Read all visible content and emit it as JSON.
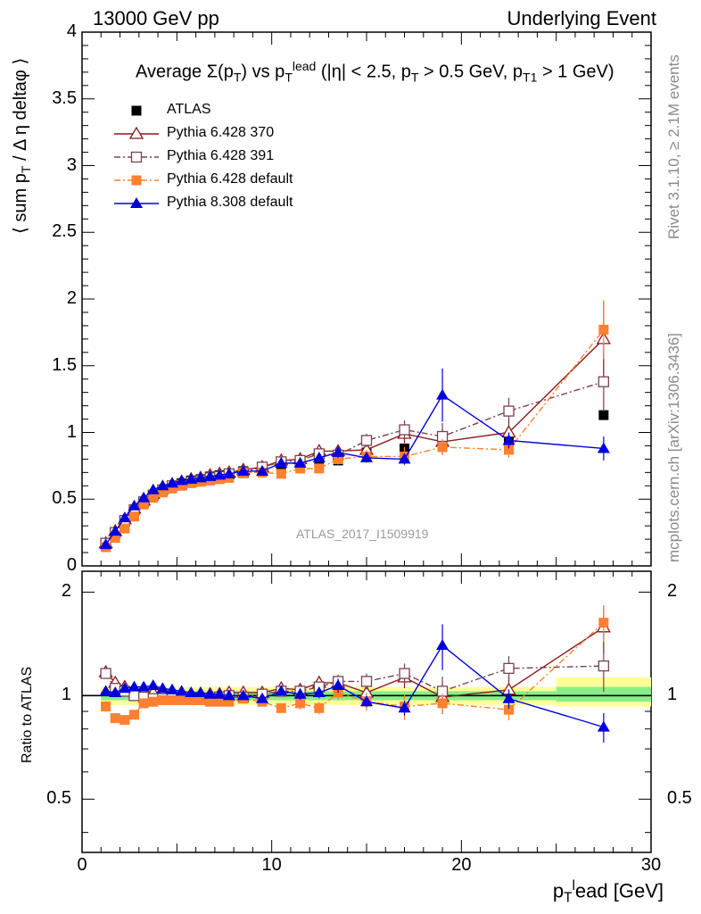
{
  "header": {
    "left": "13000 GeV pp",
    "right": "Underlying Event"
  },
  "side_labels": {
    "rivet": "Rivet 3.1.10, ≥ 2.1M events",
    "mcplots": "mcplots.cern.ch [arXiv:1306.3436]"
  },
  "watermark": "ATLAS_2017_I1509919",
  "chart_data": [
    {
      "type": "scatter",
      "title": "Average Σ(pT) vs pT^lead (|η| < 2.5, pT > 0.5 GeV, pT1 > 1 GeV)",
      "ylabel": "⟨ sum pT / Δ η deltaφ ⟩",
      "xlabel": "pT^lead [GeV]",
      "xlim": [
        0,
        30
      ],
      "ylim": [
        0,
        4
      ],
      "yticks": [
        "0",
        "0.5",
        "1",
        "1.5",
        "2",
        "2.5",
        "3",
        "3.5",
        "4"
      ],
      "xticks": [
        "0",
        "10",
        "20",
        "30"
      ],
      "legend_position": "top-left",
      "x": [
        1.25,
        1.75,
        2.25,
        2.75,
        3.25,
        3.75,
        4.25,
        4.75,
        5.25,
        5.75,
        6.25,
        6.75,
        7.25,
        7.75,
        8.5,
        9.5,
        10.5,
        11.5,
        12.5,
        13.5,
        15.0,
        17.0,
        19.0,
        22.5,
        27.5
      ],
      "series": [
        {
          "name": "ATLAS",
          "color": "#000000",
          "marker": "square-filled",
          "values": [
            0.15,
            0.24,
            0.33,
            0.42,
            0.48,
            0.53,
            0.57,
            0.6,
            0.62,
            0.64,
            0.65,
            0.67,
            0.68,
            0.69,
            0.71,
            0.73,
            0.75,
            0.77,
            0.79,
            0.79,
            0.85,
            0.88,
            0.94,
            0.96,
            1.13
          ]
        },
        {
          "name": "Pythia 6.428 370",
          "color": "#8b1a1a",
          "marker": "triangle-open",
          "line": "solid",
          "values": [
            0.17,
            0.26,
            0.35,
            0.43,
            0.49,
            0.54,
            0.58,
            0.61,
            0.63,
            0.65,
            0.66,
            0.68,
            0.69,
            0.7,
            0.72,
            0.74,
            0.79,
            0.8,
            0.86,
            0.86,
            0.87,
            0.99,
            0.93,
            1.0,
            1.7
          ]
        },
        {
          "name": "Pythia 6.428 391",
          "color": "#7a4050",
          "marker": "square-open",
          "line": "dashdot",
          "values": [
            0.17,
            0.25,
            0.34,
            0.42,
            0.48,
            0.53,
            0.57,
            0.6,
            0.61,
            0.63,
            0.64,
            0.66,
            0.67,
            0.69,
            0.7,
            0.74,
            0.78,
            0.79,
            0.84,
            0.83,
            0.94,
            1.02,
            0.97,
            1.16,
            1.38
          ]
        },
        {
          "name": "Pythia 6.428 default",
          "color": "#ff8030",
          "marker": "square-filled",
          "line": "dashdot",
          "values": [
            0.14,
            0.21,
            0.28,
            0.37,
            0.46,
            0.51,
            0.55,
            0.58,
            0.6,
            0.62,
            0.63,
            0.64,
            0.65,
            0.66,
            0.7,
            0.7,
            0.69,
            0.73,
            0.73,
            0.8,
            0.82,
            0.82,
            0.89,
            0.87,
            1.77
          ]
        },
        {
          "name": "Pythia 8.308 default",
          "color": "#0000dd",
          "marker": "triangle-filled",
          "line": "solid",
          "values": [
            0.16,
            0.26,
            0.36,
            0.45,
            0.51,
            0.57,
            0.6,
            0.62,
            0.64,
            0.65,
            0.66,
            0.67,
            0.68,
            0.69,
            0.71,
            0.71,
            0.77,
            0.77,
            0.81,
            0.85,
            0.81,
            0.8,
            1.28,
            0.94,
            0.88
          ]
        }
      ],
      "errors": {
        "Pythia 6.428 370": [
          0.005,
          0.005,
          0.005,
          0.005,
          0.005,
          0.005,
          0.005,
          0.005,
          0.005,
          0.005,
          0.005,
          0.005,
          0.01,
          0.01,
          0.01,
          0.02,
          0.02,
          0.03,
          0.03,
          0.04,
          0.05,
          0.07,
          0.1,
          0.1,
          0.28
        ],
        "Pythia 6.428 391": [
          0.005,
          0.005,
          0.005,
          0.005,
          0.005,
          0.005,
          0.005,
          0.005,
          0.005,
          0.005,
          0.005,
          0.005,
          0.01,
          0.01,
          0.01,
          0.02,
          0.02,
          0.03,
          0.03,
          0.04,
          0.05,
          0.07,
          0.1,
          0.1,
          0.22
        ],
        "Pythia 6.428 default": [
          0.005,
          0.005,
          0.005,
          0.005,
          0.005,
          0.005,
          0.005,
          0.005,
          0.005,
          0.005,
          0.005,
          0.005,
          0.01,
          0.01,
          0.01,
          0.02,
          0.02,
          0.03,
          0.03,
          0.04,
          0.05,
          0.07,
          0.06,
          0.06,
          0.22
        ],
        "Pythia 8.308 default": [
          0.005,
          0.005,
          0.005,
          0.005,
          0.005,
          0.005,
          0.005,
          0.005,
          0.005,
          0.005,
          0.005,
          0.005,
          0.01,
          0.01,
          0.01,
          0.02,
          0.02,
          0.03,
          0.03,
          0.04,
          0.03,
          0.04,
          0.2,
          0.06,
          0.09
        ]
      }
    },
    {
      "type": "scatter",
      "ylabel": "Ratio to ATLAS",
      "xlim": [
        0,
        30
      ],
      "ylim": [
        0.35,
        2.3
      ],
      "yticks": [
        "0.5",
        "1",
        "2"
      ],
      "x": [
        1.25,
        1.75,
        2.25,
        2.75,
        3.25,
        3.75,
        4.25,
        4.75,
        5.25,
        5.75,
        6.25,
        6.75,
        7.25,
        7.75,
        8.5,
        9.5,
        10.5,
        11.5,
        12.5,
        13.5,
        15.0,
        17.0,
        19.0,
        22.5,
        27.5
      ],
      "series": [
        {
          "name": "Pythia 6.428 370",
          "values": [
            1.17,
            1.09,
            1.06,
            1.03,
            1.02,
            1.02,
            1.01,
            1.01,
            1.01,
            1.01,
            1.01,
            1.01,
            1.01,
            1.02,
            1.02,
            1.02,
            1.05,
            1.04,
            1.09,
            1.09,
            1.02,
            1.13,
            0.99,
            1.04,
            1.58
          ]
        },
        {
          "name": "Pythia 6.428 391",
          "values": [
            1.16,
            1.05,
            1.03,
            1.0,
            0.99,
            0.98,
            0.98,
            0.98,
            0.98,
            0.98,
            0.98,
            0.98,
            0.99,
            1.0,
            0.99,
            1.01,
            1.03,
            1.03,
            1.06,
            1.1,
            1.1,
            1.16,
            1.03,
            1.2,
            1.22
          ]
        },
        {
          "name": "Pythia 6.428 default",
          "values": [
            0.93,
            0.86,
            0.85,
            0.88,
            0.95,
            0.96,
            0.97,
            0.97,
            0.97,
            0.97,
            0.97,
            0.96,
            0.96,
            0.96,
            0.98,
            0.96,
            0.92,
            0.95,
            0.92,
            1.02,
            0.96,
            0.93,
            0.95,
            0.91,
            1.63
          ]
        },
        {
          "name": "Pythia 8.308 default",
          "values": [
            1.03,
            1.02,
            1.05,
            1.06,
            1.06,
            1.07,
            1.05,
            1.04,
            1.03,
            1.02,
            1.02,
            1.01,
            1.01,
            1.0,
            1.0,
            0.98,
            1.03,
            1.01,
            1.02,
            1.07,
            0.96,
            0.92,
            1.4,
            0.98,
            0.81
          ]
        }
      ],
      "reference_line": 1
    }
  ]
}
